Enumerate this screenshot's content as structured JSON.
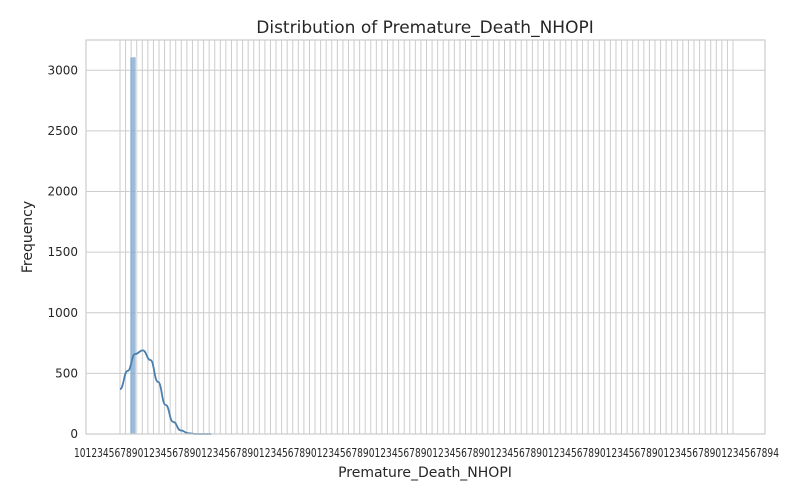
{
  "chart_data": {
    "type": "bar",
    "title": "Distribution of Premature_Death_NHOPI",
    "xlabel": "Premature_Death_NHOPI",
    "ylabel": "Frequency",
    "ylim": [
      0,
      3250
    ],
    "y_ticks": [
      0,
      500,
      1000,
      1500,
      2000,
      2500,
      3000
    ],
    "grid": true,
    "x_ticks_legible": false,
    "x_tick_labels_visible": [
      "1",
      "4"
    ],
    "bins": [
      {
        "value": 3110
      }
    ],
    "kde": {
      "points": [
        [
          0,
          370
        ],
        [
          1,
          520
        ],
        [
          2,
          660
        ],
        [
          3,
          690
        ],
        [
          4,
          610
        ],
        [
          5,
          430
        ],
        [
          6,
          240
        ],
        [
          7,
          100
        ],
        [
          8,
          30
        ],
        [
          9,
          6
        ],
        [
          10,
          0
        ],
        [
          12,
          0
        ]
      ]
    },
    "colors": {
      "bar": "#7aa6d2",
      "kde": "#4a7faf",
      "grid": "#cccccc"
    }
  }
}
